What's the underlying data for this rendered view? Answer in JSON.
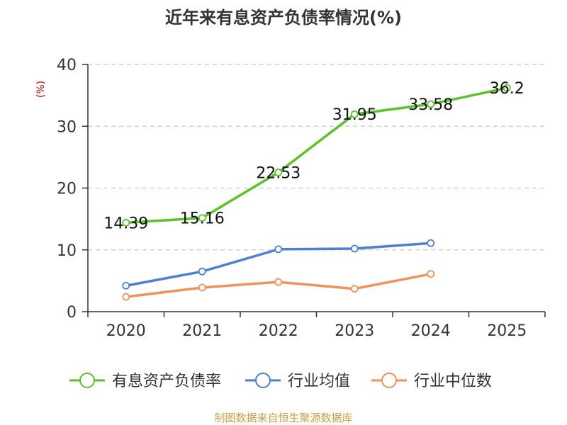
{
  "chart_data": {
    "type": "line",
    "title": "近年来有息资产负债率情况(%)",
    "ylabel": "(%)",
    "xlabel": "",
    "categories": [
      "2020",
      "2021",
      "2022",
      "2023",
      "2024",
      "2025"
    ],
    "ylim": [
      0,
      40
    ],
    "yticks": [
      0,
      10,
      20,
      30,
      40
    ],
    "grid": true,
    "legend_position": "bottom",
    "series": [
      {
        "name": "有息资产负债率",
        "color": "#5cc22a",
        "values": [
          14.39,
          15.16,
          22.53,
          31.95,
          33.58,
          36.2
        ],
        "labels": [
          "14.39",
          "15.16",
          "22.53",
          "31.95",
          "33.58",
          "36.2"
        ]
      },
      {
        "name": "行业均值",
        "color": "#4d7fd6",
        "values": [
          4.2,
          6.5,
          10.1,
          10.2,
          11.1,
          null
        ]
      },
      {
        "name": "行业中位数",
        "color": "#f29258",
        "values": [
          2.4,
          3.9,
          4.8,
          3.7,
          6.1,
          null
        ]
      }
    ],
    "source": "制图数据来自恒生聚源数据库"
  },
  "colors": {
    "ylabel": "#cc0000",
    "axis": "#333333",
    "grid": "#c8c8c8",
    "text": "#333333",
    "source": "#c8a040"
  }
}
